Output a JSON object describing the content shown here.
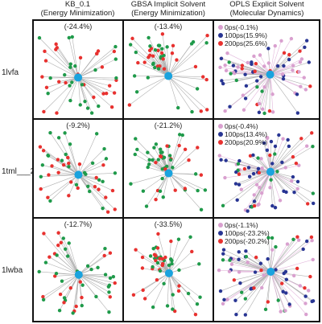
{
  "columns": [
    {
      "line1": "KB_0.1",
      "line2": "(Energy Minimization)"
    },
    {
      "line1": "GBSA Implicit Solvent",
      "line2": "(Energy Minimization)"
    },
    {
      "line1": "OPLS Explicit Solvent",
      "line2": "(Molecular Dynamics)"
    }
  ],
  "rows": [
    {
      "label": "1lvfa",
      "pcts": [
        "(-24.4%)",
        "(-13.4%)"
      ],
      "legend": [
        "0ps(-0.1%)",
        "100ps(15.9%)",
        "200ps(25.6%)"
      ]
    },
    {
      "label": "1tml___2",
      "pcts": [
        "(-9.2%)",
        "(-21.2%)"
      ],
      "legend": [
        "0ps(-0.4%)",
        "100ps(13.4%)",
        "200ps(20.9%)"
      ]
    },
    {
      "label": "1lwba",
      "pcts": [
        "(-12.7%)",
        "(-33.5%)"
      ],
      "legend": [
        "0ps(-1.1%)",
        "100ps(-23.2%)",
        "200ps(-20.2%)"
      ]
    }
  ],
  "colors": {
    "red": "#e8312f",
    "green": "#1f9a4a",
    "navy": "#283593",
    "pink": "#d9a0cf",
    "center": "#1aa3de",
    "edge": "#b0b0b0"
  }
}
